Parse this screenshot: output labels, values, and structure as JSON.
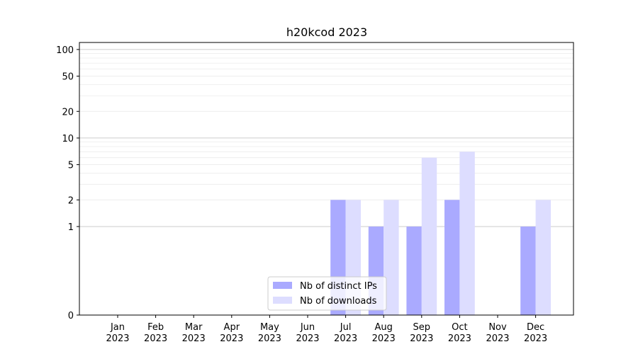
{
  "chart_data": {
    "type": "bar",
    "title": "h20kcod 2023",
    "xlabel": "",
    "ylabel": "",
    "categories": [
      [
        "Jan",
        "2023"
      ],
      [
        "Feb",
        "2023"
      ],
      [
        "Mar",
        "2023"
      ],
      [
        "Apr",
        "2023"
      ],
      [
        "May",
        "2023"
      ],
      [
        "Jun",
        "2023"
      ],
      [
        "Jul",
        "2023"
      ],
      [
        "Aug",
        "2023"
      ],
      [
        "Sep",
        "2023"
      ],
      [
        "Oct",
        "2023"
      ],
      [
        "Nov",
        "2023"
      ],
      [
        "Dec",
        "2023"
      ]
    ],
    "series": [
      {
        "name": "Nb of distinct IPs",
        "color": "#aaaaff",
        "values": [
          0,
          0,
          0,
          0,
          0,
          0,
          2,
          1,
          1,
          2,
          0,
          1
        ]
      },
      {
        "name": "Nb of downloads",
        "color": "#ddddff",
        "values": [
          0,
          0,
          0,
          0,
          0,
          0,
          2,
          2,
          6,
          7,
          0,
          2
        ]
      }
    ],
    "yscale": "symlog",
    "ylim": [
      0,
      120
    ],
    "yticks": [
      0,
      1,
      2,
      5,
      10,
      20,
      50,
      100
    ],
    "grid": true,
    "legend": "lower-center"
  }
}
